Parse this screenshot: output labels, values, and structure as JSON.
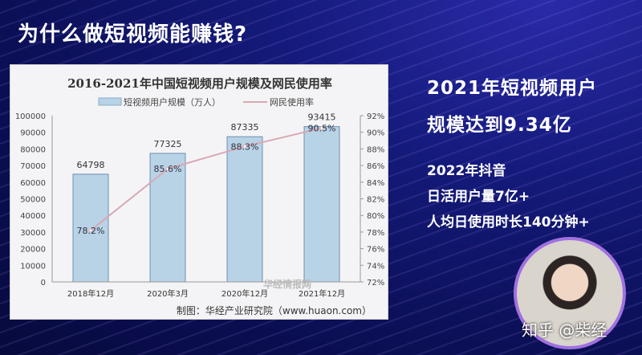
{
  "slide": {
    "title": "为什么做短视频能赚钱?",
    "headline_line1": "2021年短视频用户",
    "headline_line2": "规模达到9.34亿",
    "sub1": "2022年抖音",
    "sub2": "日活用户量7亿+",
    "sub3": "人均日使用时长140分钟+",
    "watermark": "知乎 @柴经"
  },
  "chart_data": {
    "type": "bar",
    "title": "2016-2021年中国短视频用户规模及网民使用率",
    "categories": [
      "2018年12月",
      "2020年3月",
      "2020年12月",
      "2021年12月"
    ],
    "series": [
      {
        "name": "短视频用户规模（万人）",
        "type": "bar",
        "axis": "left",
        "values": [
          64798,
          77325,
          87335,
          93415
        ],
        "labels": [
          "64798",
          "77325",
          "87335",
          "93415"
        ],
        "color": "#b8d3e6"
      },
      {
        "name": "网民使用率",
        "type": "line",
        "axis": "right",
        "values": [
          78.2,
          85.6,
          88.3,
          90.5
        ],
        "labels": [
          "78.2%",
          "85.6%",
          "88.3%",
          "90.5%"
        ],
        "color": "#d8a8b4"
      }
    ],
    "ylim": [
      0,
      100000
    ],
    "yticks": [
      "0",
      "10000",
      "20000",
      "30000",
      "40000",
      "50000",
      "60000",
      "70000",
      "80000",
      "90000",
      "100000"
    ],
    "y2lim": [
      72,
      92
    ],
    "y2ticks": [
      "72%",
      "74%",
      "76%",
      "78%",
      "80%",
      "82%",
      "84%",
      "86%",
      "88%",
      "90%",
      "92%"
    ],
    "legend": "top",
    "source": "制图：华经产业研究院（www.huaon.com）",
    "logo_text": "华经情报网"
  }
}
